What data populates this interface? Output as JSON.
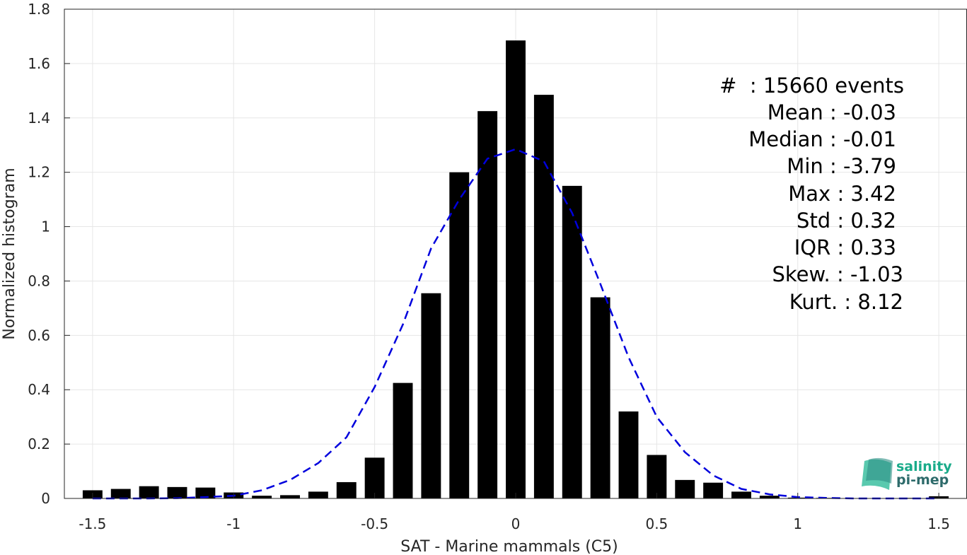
{
  "colors": {
    "bar": "#000000",
    "fit": "#0000dd",
    "grid": "#e6e6e6",
    "axis": "#262626",
    "logo_teal": "#1aab8a",
    "logo_dark": "#2e6b6b"
  },
  "chart_data": {
    "type": "bar",
    "xlabel": "SAT - Marine mammals (C5)",
    "ylabel": "Normalized histogram",
    "xlim": [
      -1.6,
      1.6
    ],
    "ylim": [
      0,
      1.8
    ],
    "xticks": [
      -1.5,
      -1,
      -0.5,
      0,
      0.5,
      1,
      1.5
    ],
    "xtick_labels": [
      "-1.5",
      "-1",
      "-0.5",
      "0",
      "0.5",
      "1",
      "1.5"
    ],
    "yticks": [
      0,
      0.2,
      0.4,
      0.6,
      0.8,
      1,
      1.2,
      1.4,
      1.6,
      1.8
    ],
    "ytick_labels": [
      "0",
      "0.2",
      "0.4",
      "0.6",
      "0.8",
      "1",
      "1.2",
      "1.4",
      "1.6",
      "1.8"
    ],
    "grid": true,
    "bin_width": 0.1,
    "bars": {
      "x": [
        -1.5,
        -1.4,
        -1.3,
        -1.2,
        -1.1,
        -1.0,
        -0.9,
        -0.8,
        -0.7,
        -0.6,
        -0.5,
        -0.4,
        -0.3,
        -0.2,
        -0.1,
        0.0,
        0.1,
        0.2,
        0.3,
        0.4,
        0.5,
        0.6,
        0.7,
        0.8,
        0.9,
        1.0,
        1.1,
        1.2,
        1.3,
        1.4,
        1.5
      ],
      "values": [
        0.03,
        0.035,
        0.045,
        0.042,
        0.04,
        0.022,
        0.01,
        0.012,
        0.025,
        0.06,
        0.15,
        0.425,
        0.755,
        1.2,
        1.425,
        1.685,
        1.485,
        1.15,
        0.74,
        0.32,
        0.16,
        0.068,
        0.058,
        0.025,
        0.01,
        0.003,
        0.002,
        0.001,
        0.001,
        0.002,
        0.008
      ]
    },
    "fit_curve": {
      "style": "dashed",
      "x": [
        -1.5,
        -1.4,
        -1.3,
        -1.2,
        -1.1,
        -1.0,
        -0.9,
        -0.8,
        -0.7,
        -0.6,
        -0.5,
        -0.4,
        -0.3,
        -0.2,
        -0.1,
        0.0,
        0.1,
        0.2,
        0.3,
        0.4,
        0.5,
        0.6,
        0.7,
        0.8,
        0.9,
        1.0,
        1.1,
        1.2,
        1.3,
        1.4,
        1.5
      ],
      "y": [
        0.0,
        0.0,
        0.0,
        0.001,
        0.005,
        0.01,
        0.03,
        0.068,
        0.13,
        0.225,
        0.41,
        0.64,
        0.92,
        1.1,
        1.25,
        1.285,
        1.24,
        1.05,
        0.79,
        0.52,
        0.3,
        0.17,
        0.085,
        0.035,
        0.015,
        0.005,
        0.002,
        0.0,
        0.0,
        0.0,
        0.0
      ]
    },
    "annotation": {
      "lines": [
        {
          "label": "#  : 15660 events"
        },
        {
          "label": "Mean : -0.03"
        },
        {
          "label": "Median : -0.01"
        },
        {
          "label": "Min : -3.79"
        },
        {
          "label": "Max : 3.42"
        },
        {
          "label": "Std : 0.32"
        },
        {
          "label": "IQR : 0.33"
        },
        {
          "label": "Skew. : -1.03"
        },
        {
          "label": "Kurt. : 8.12"
        }
      ]
    },
    "logo": {
      "line1": "salinity",
      "line2": "pi-mep"
    }
  }
}
